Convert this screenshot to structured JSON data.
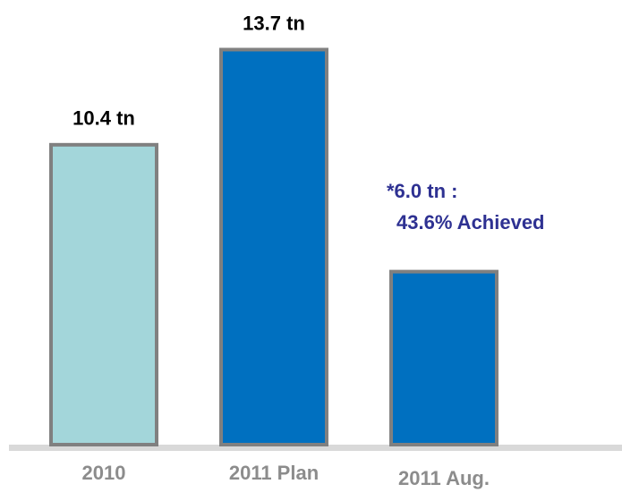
{
  "chart_data": {
    "type": "bar",
    "categories": [
      "2010",
      "2011 Plan",
      "2011 Aug."
    ],
    "values": [
      10.4,
      13.7,
      6.0
    ],
    "value_labels": [
      "10.4 tn",
      "13.7 tn",
      "*6.0 tn :"
    ],
    "annotation": "43.6% Achieved",
    "colors": [
      "#a3d6da",
      "#0070c0",
      "#0070c0"
    ],
    "ylim": [
      0,
      14.8
    ]
  }
}
